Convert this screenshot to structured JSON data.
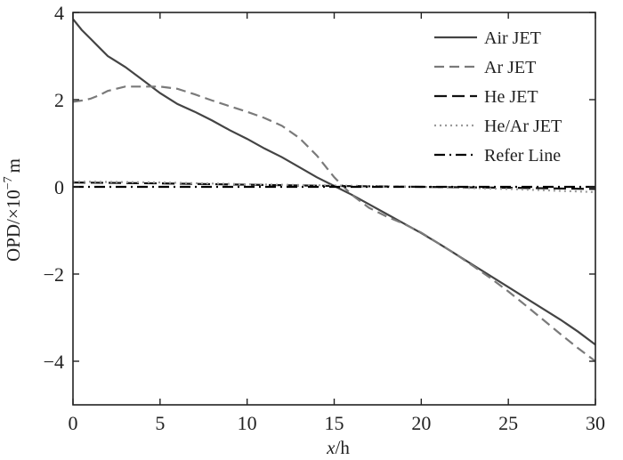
{
  "chart_data": {
    "type": "line",
    "xlabel": "x/h",
    "xlabel_italic": "x",
    "xlabel_rest": "/h",
    "ylabel": "OPD/×10⁻⁷m",
    "ylabel_main": "OPD/×10",
    "ylabel_exp": "−7",
    "ylabel_unit": "m",
    "xlim": [
      0,
      30
    ],
    "ylim": [
      -5,
      4
    ],
    "xticks": [
      0,
      5,
      10,
      15,
      20,
      25,
      30
    ],
    "yticks": [
      4,
      2,
      0,
      -2,
      -4
    ],
    "xtick_labels": [
      "0",
      "5",
      "10",
      "15",
      "20",
      "25",
      "30"
    ],
    "ytick_labels": [
      "4",
      "2",
      "0",
      "−2",
      "−4"
    ],
    "grid": false,
    "legend_position": "top-right",
    "series": [
      {
        "name": "Air JET",
        "color": "#444444",
        "dash": "solid",
        "x": [
          0,
          0.5,
          1,
          1.5,
          2,
          3,
          4,
          5,
          6,
          7,
          8,
          9,
          10,
          11,
          12,
          13,
          14,
          15,
          16,
          17,
          18,
          19,
          20,
          21,
          22,
          23,
          24,
          25,
          26,
          27,
          28,
          29,
          30
        ],
        "y": [
          3.85,
          3.6,
          3.4,
          3.2,
          3.0,
          2.75,
          2.45,
          2.15,
          1.9,
          1.72,
          1.52,
          1.3,
          1.1,
          0.88,
          0.68,
          0.45,
          0.22,
          0.02,
          -0.18,
          -0.4,
          -0.62,
          -0.84,
          -1.06,
          -1.3,
          -1.55,
          -1.8,
          -2.05,
          -2.3,
          -2.55,
          -2.8,
          -3.05,
          -3.32,
          -3.62
        ]
      },
      {
        "name": "Ar JET",
        "color": "#7a7a7a",
        "dash": "dashed",
        "x": [
          0,
          0.5,
          1,
          1.5,
          2,
          3,
          4,
          5,
          6,
          7,
          8,
          9,
          10,
          11,
          12,
          13,
          14,
          15,
          16,
          17,
          18,
          19,
          20,
          21,
          22,
          23,
          24,
          25,
          26,
          27,
          28,
          29,
          30
        ],
        "y": [
          1.95,
          1.98,
          2.02,
          2.1,
          2.2,
          2.3,
          2.3,
          2.3,
          2.25,
          2.12,
          1.98,
          1.85,
          1.72,
          1.58,
          1.4,
          1.12,
          0.72,
          0.22,
          -0.18,
          -0.48,
          -0.68,
          -0.85,
          -1.05,
          -1.3,
          -1.55,
          -1.82,
          -2.1,
          -2.4,
          -2.72,
          -3.05,
          -3.38,
          -3.7,
          -4.0
        ]
      },
      {
        "name": "He JET",
        "color": "#111111",
        "dash": "longdash",
        "x": [
          0,
          5,
          10,
          15,
          20,
          25,
          30
        ],
        "y": [
          0.1,
          0.08,
          0.05,
          0.02,
          0.0,
          -0.02,
          -0.05
        ]
      },
      {
        "name": "He/Ar JET",
        "color": "#9a9a9a",
        "dash": "dotted",
        "x": [
          0,
          5,
          10,
          15,
          20,
          25,
          30
        ],
        "y": [
          0.12,
          0.1,
          0.06,
          0.03,
          0.0,
          -0.05,
          -0.12
        ]
      },
      {
        "name": "Refer Line",
        "color": "#000000",
        "dash": "dashdot",
        "x": [
          0,
          30
        ],
        "y": [
          0,
          0
        ]
      }
    ]
  }
}
